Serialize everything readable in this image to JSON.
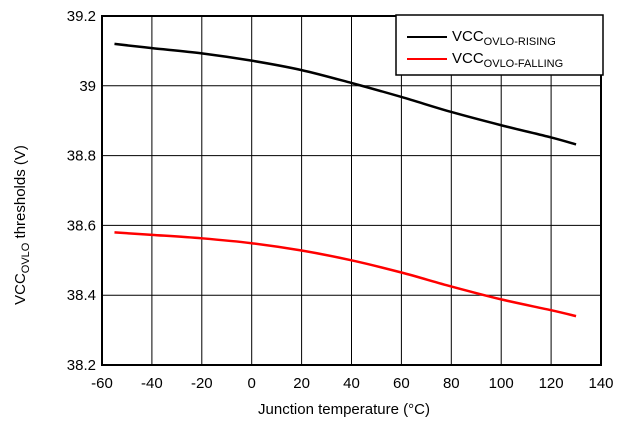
{
  "chart_data": {
    "type": "line",
    "title": "",
    "xlabel": "Junction temperature (°C)",
    "ylabel": {
      "main": "VCC",
      "sub": "OVLO",
      "rest": " thresholds (V)"
    },
    "xlim": [
      -60,
      140
    ],
    "ylim": [
      38.2,
      39.2
    ],
    "x_ticks": [
      -60,
      -40,
      -20,
      0,
      20,
      40,
      60,
      80,
      100,
      120,
      140
    ],
    "y_ticks": [
      38.2,
      38.4,
      38.6,
      38.8,
      39,
      39.2
    ],
    "grid": true,
    "legend_position": "top-right",
    "series": [
      {
        "name_main": "VCC",
        "name_sub": "OVLO-RISING",
        "color": "#000000",
        "x": [
          -55,
          -40,
          -20,
          0,
          20,
          40,
          60,
          80,
          100,
          120,
          130
        ],
        "y": [
          39.12,
          39.108,
          39.093,
          39.072,
          39.045,
          39.008,
          38.968,
          38.925,
          38.887,
          38.852,
          38.832
        ]
      },
      {
        "name_main": "VCC",
        "name_sub": "OVLO-FALLING",
        "color": "#ff0000",
        "x": [
          -55,
          -40,
          -20,
          0,
          20,
          40,
          60,
          80,
          100,
          120,
          130
        ],
        "y": [
          38.58,
          38.573,
          38.563,
          38.549,
          38.528,
          38.5,
          38.465,
          38.425,
          38.388,
          38.357,
          38.34
        ]
      }
    ]
  }
}
